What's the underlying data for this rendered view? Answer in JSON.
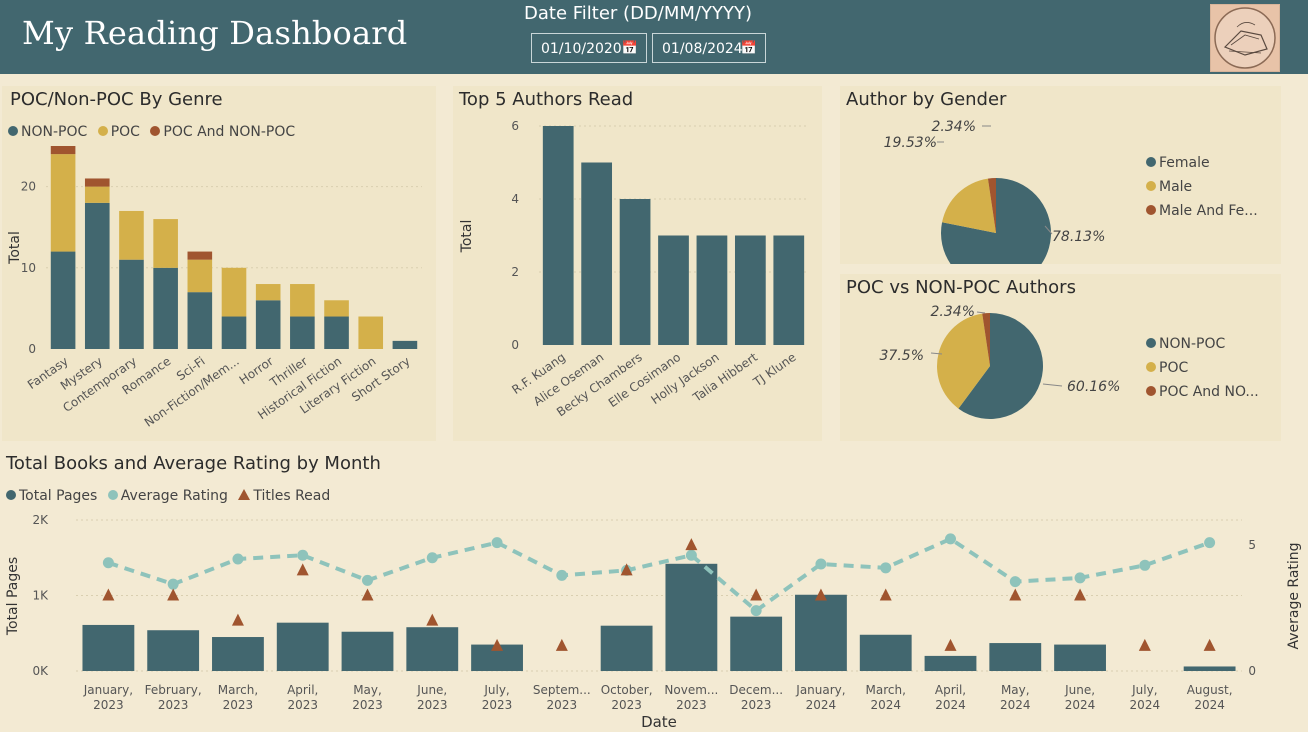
{
  "header": {
    "title": "My Reading Dashboard",
    "filter_title": "Date Filter (DD/MM/YYYY)",
    "start_date": "01/10/2020",
    "end_date": "01/08/2024",
    "calendar_icon": "calendar-icon"
  },
  "colors": {
    "teal": "#42676f",
    "gold": "#d4b04a",
    "rust": "#a0552f",
    "mint": "#8ec3bb",
    "header": "#42676f",
    "panel": "#f0e6c9"
  },
  "chart_data": [
    {
      "id": "genre",
      "type": "bar",
      "stacked": true,
      "title": "POC/Non-POC By Genre",
      "ylabel": "Total",
      "xlabel": "",
      "ylim": [
        0,
        25
      ],
      "yticks": [
        0,
        10,
        20
      ],
      "legend_position": "top-left",
      "categories": [
        "Fantasy",
        "Mystery",
        "Contemporary",
        "Romance",
        "Sci-Fi",
        "Non-Fiction/Mem...",
        "Horror",
        "Thriller",
        "Historical Fiction",
        "Literary Fiction",
        "Short Story"
      ],
      "series": [
        {
          "name": "NON-POC",
          "values": [
            12,
            18,
            11,
            10,
            7,
            4,
            6,
            4,
            4,
            0,
            1
          ]
        },
        {
          "name": "POC",
          "values": [
            12,
            2,
            6,
            6,
            4,
            6,
            2,
            4,
            2,
            4,
            0
          ]
        },
        {
          "name": "POC And NON-POC",
          "values": [
            1,
            1,
            0,
            0,
            1,
            0,
            0,
            0,
            0,
            0,
            0
          ]
        }
      ]
    },
    {
      "id": "authors",
      "type": "bar",
      "title": "Top 5 Authors Read",
      "ylabel": "Total",
      "xlabel": "",
      "ylim": [
        0,
        6
      ],
      "yticks": [
        0,
        2,
        4,
        6
      ],
      "categories": [
        "R.F. Kuang",
        "Alice Oseman",
        "Becky Chambers",
        "Elle Cosimano",
        "Holly Jackson",
        "Talia Hibbert",
        "TJ Klune"
      ],
      "values": [
        6,
        5,
        4,
        3,
        3,
        3,
        3
      ]
    },
    {
      "id": "gender",
      "type": "pie",
      "title": "Author by Gender",
      "legend_position": "right",
      "labels": [
        "Female",
        "Male",
        "Male And Fe..."
      ],
      "values": [
        78.13,
        19.53,
        2.34
      ],
      "value_labels": [
        "78.13%",
        "19.53%",
        "2.34%"
      ]
    },
    {
      "id": "poc",
      "type": "pie",
      "title": "POC vs NON-POC Authors",
      "legend_position": "right",
      "labels": [
        "NON-POC",
        "POC",
        "POC And NO..."
      ],
      "values": [
        60.16,
        37.5,
        2.34
      ],
      "value_labels": [
        "60.16%",
        "37.5%",
        "2.34%"
      ]
    },
    {
      "id": "monthly",
      "type": "bar",
      "title": "Total Books and Average Rating by Month",
      "xlabel": "Date",
      "ylabel": "Total Pages",
      "y2label": "Average Rating",
      "ylim": [
        0,
        2000
      ],
      "yticks": [
        0,
        1000,
        2000
      ],
      "ytick_labels": [
        "0K",
        "1K",
        "2K"
      ],
      "y2lim": [
        0,
        6
      ],
      "y2ticks": [
        0,
        5
      ],
      "legend_position": "top-left",
      "categories": [
        [
          "January,",
          "2023"
        ],
        [
          "February,",
          "2023"
        ],
        [
          "March,",
          "2023"
        ],
        [
          "April,",
          "2023"
        ],
        [
          "May,",
          "2023"
        ],
        [
          "June,",
          "2023"
        ],
        [
          "July,",
          "2023"
        ],
        [
          "Septem...",
          "2023"
        ],
        [
          "October,",
          "2023"
        ],
        [
          "Novem...",
          "2023"
        ],
        [
          "Decem...",
          "2023"
        ],
        [
          "January,",
          "2024"
        ],
        [
          "March,",
          "2024"
        ],
        [
          "April,",
          "2024"
        ],
        [
          "May,",
          "2024"
        ],
        [
          "June,",
          "2024"
        ],
        [
          "July,",
          "2024"
        ],
        [
          "August,",
          "2024"
        ]
      ],
      "series": [
        {
          "name": "Total Pages",
          "kind": "bar",
          "values": [
            610,
            540,
            450,
            640,
            520,
            580,
            350,
            0,
            600,
            1420,
            720,
            1010,
            480,
            200,
            370,
            350,
            0,
            60
          ]
        },
        {
          "name": "Average Rating",
          "kind": "line",
          "values": [
            4.3,
            3.45,
            4.45,
            4.6,
            3.6,
            4.5,
            5.1,
            3.8,
            4.0,
            4.6,
            2.4,
            4.25,
            4.1,
            5.25,
            3.55,
            3.7,
            4.2,
            5.1
          ]
        },
        {
          "name": "Titles Read",
          "kind": "marker",
          "values": [
            3,
            3,
            2,
            4,
            3,
            2,
            1,
            1,
            4,
            5,
            3,
            3,
            3,
            1,
            3,
            3,
            1,
            1
          ]
        }
      ]
    }
  ]
}
